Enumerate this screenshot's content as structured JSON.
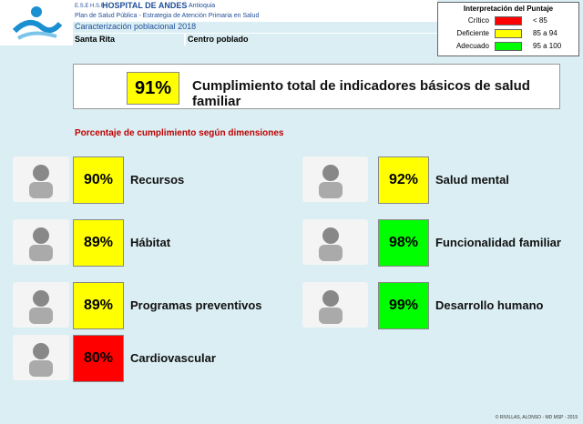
{
  "header": {
    "org_prefix": "E.S.E H.S.R",
    "hospital": "HOSPITAL DE ANDES",
    "region": "Antioquia",
    "subtitle": "Plan de Salud Pública - Estrategia de Atención Primaria en Salud",
    "caption": "Caracterización poblacional 2018",
    "place": "Santa Rita",
    "place_type": "Centro poblado"
  },
  "legend": {
    "title": "Interpretación del Puntaje",
    "items": [
      {
        "label": "Crítico",
        "color": "#ff0000",
        "range": "< 85"
      },
      {
        "label": "Deficiente",
        "color": "#ffff00",
        "range": "85 a 94"
      },
      {
        "label": "Adecuado",
        "color": "#00ff00",
        "range": "95 a 100"
      }
    ]
  },
  "total": {
    "value": "91%",
    "label": "Cumplimiento total de indicadores básicos de salud familiar",
    "color": "#ffff00"
  },
  "section_title": "Porcentaje de cumplimiento según dimensiones",
  "dimensions": [
    {
      "value": "90%",
      "label": "Recursos",
      "color": "#ffff00"
    },
    {
      "value": "89%",
      "label": "Hábitat",
      "color": "#ffff00"
    },
    {
      "value": "89%",
      "label": "Programas preventivos",
      "color": "#ffff00"
    },
    {
      "value": "80%",
      "label": "Cardiovascular",
      "color": "#ff0000"
    },
    {
      "value": "92%",
      "label": "Salud mental",
      "color": "#ffff00"
    },
    {
      "value": "98%",
      "label": "Funcionalidad familiar",
      "color": "#00ff00"
    },
    {
      "value": "99%",
      "label": "Desarrollo humano",
      "color": "#00ff00"
    }
  ],
  "footer": "© RIVILLAS, ALONSO - MD MSP - 2019"
}
